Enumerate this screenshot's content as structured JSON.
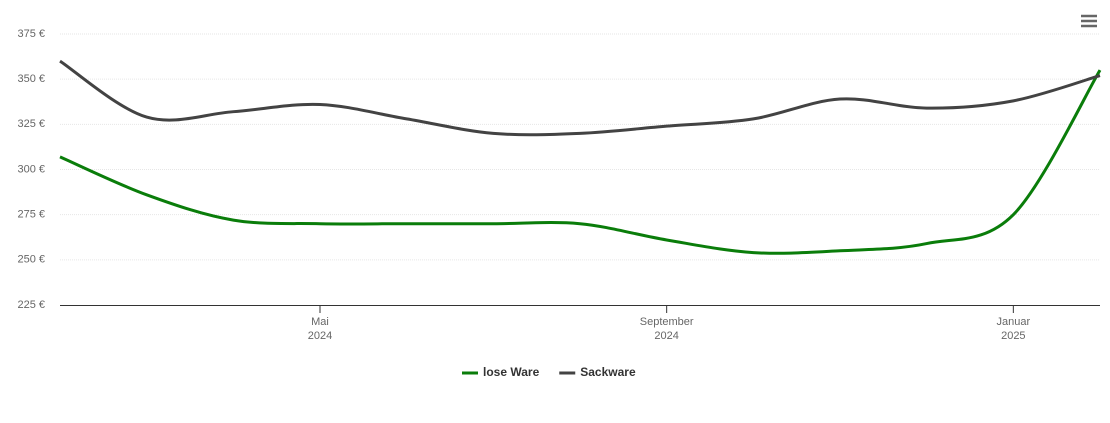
{
  "chart_data": {
    "type": "line",
    "x": [
      "2024-02",
      "2024-03",
      "2024-04",
      "2024-05",
      "2024-06",
      "2024-07",
      "2024-08",
      "2024-09",
      "2024-10",
      "2024-11",
      "2024-12",
      "2025-01",
      "2025-02"
    ],
    "xlim": [
      "2024-02",
      "2025-02"
    ],
    "xticks": [
      {
        "value": "2024-05",
        "label": "Mai\n2024"
      },
      {
        "value": "2024-09",
        "label": "September\n2024"
      },
      {
        "value": "2025-01",
        "label": "Januar\n2025"
      }
    ],
    "ylim": [
      225,
      375
    ],
    "yticks": [
      {
        "value": 225,
        "label": "225 €"
      },
      {
        "value": 250,
        "label": "250 €"
      },
      {
        "value": 275,
        "label": "275 €"
      },
      {
        "value": 300,
        "label": "300 €"
      },
      {
        "value": 325,
        "label": "325 €"
      },
      {
        "value": 350,
        "label": "350 €"
      },
      {
        "value": 375,
        "label": "375 €"
      }
    ],
    "grid": true,
    "legend": "bottom",
    "series": [
      {
        "name": "lose Ware",
        "color": "#0a7d0a",
        "values": [
          307,
          286,
          272,
          270,
          270,
          270,
          270,
          261,
          254,
          255,
          259,
          275,
          355
        ]
      },
      {
        "name": "Sackware",
        "color": "#434343",
        "values": [
          360,
          329,
          332,
          336,
          328,
          320,
          320,
          324,
          328,
          339,
          334,
          338,
          352
        ]
      }
    ]
  }
}
